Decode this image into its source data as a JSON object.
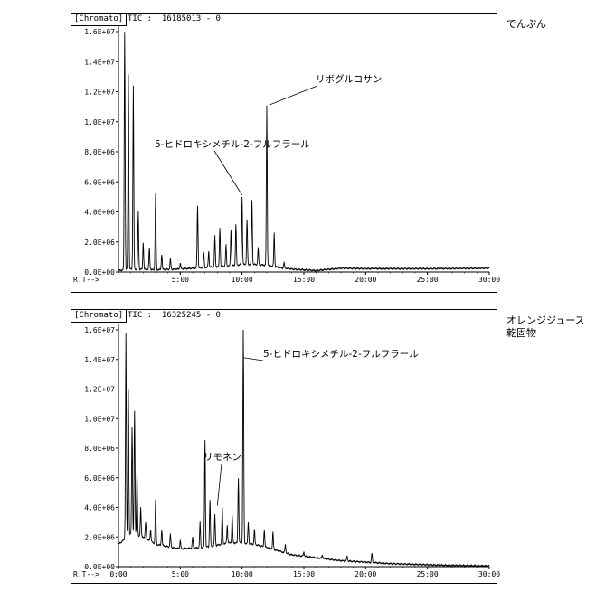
{
  "chart_data": [
    {
      "type": "line",
      "header": "[Chromato]",
      "tic": "TIC :  16185013 - 0",
      "sample_label": "でんぷん",
      "xlabel": "R.T-->",
      "xlim": [
        0,
        30
      ],
      "ylim": [
        0,
        16000000
      ],
      "x_ticks": [
        "5:00",
        "10:00",
        "15:00",
        "20:00",
        "25:00",
        "30:00"
      ],
      "y_ticks": [
        "0.0E+00",
        "2.0E+06",
        "4.0E+06",
        "6.0E+06",
        "8.0E+06",
        "1.0E+07",
        "1.2E+07",
        "1.4E+07",
        "1.6E+07"
      ],
      "baseline": [
        [
          0.0,
          0.1
        ],
        [
          1.0,
          0.2
        ],
        [
          3.0,
          0.15
        ],
        [
          5.0,
          0.2
        ],
        [
          7.0,
          0.3
        ],
        [
          9.0,
          0.4
        ],
        [
          10.0,
          0.5
        ],
        [
          11.0,
          0.5
        ],
        [
          12.0,
          0.45
        ],
        [
          13.0,
          0.3
        ],
        [
          14.0,
          0.2
        ],
        [
          16.0,
          0.1
        ],
        [
          18.0,
          0.25
        ],
        [
          20.0,
          0.22
        ],
        [
          25.0,
          0.22
        ],
        [
          30.0,
          0.25
        ]
      ],
      "peaks": [
        {
          "x": 0.5,
          "y": 16.0
        },
        {
          "x": 0.8,
          "y": 13.2
        },
        {
          "x": 1.2,
          "y": 12.4
        },
        {
          "x": 1.6,
          "y": 4.0
        },
        {
          "x": 2.0,
          "y": 2.0
        },
        {
          "x": 2.5,
          "y": 1.6
        },
        {
          "x": 3.0,
          "y": 5.2
        },
        {
          "x": 3.5,
          "y": 1.2
        },
        {
          "x": 4.2,
          "y": 0.9
        },
        {
          "x": 5.0,
          "y": 0.6
        },
        {
          "x": 6.4,
          "y": 4.4
        },
        {
          "x": 6.9,
          "y": 1.3
        },
        {
          "x": 7.3,
          "y": 1.4
        },
        {
          "x": 7.8,
          "y": 2.4
        },
        {
          "x": 8.2,
          "y": 3.0
        },
        {
          "x": 8.7,
          "y": 1.8
        },
        {
          "x": 9.1,
          "y": 2.8
        },
        {
          "x": 9.5,
          "y": 3.2
        },
        {
          "x": 10.0,
          "y": 5.0
        },
        {
          "x": 10.4,
          "y": 3.5
        },
        {
          "x": 10.8,
          "y": 4.8
        },
        {
          "x": 11.3,
          "y": 1.6
        },
        {
          "x": 12.0,
          "y": 11.1
        },
        {
          "x": 12.6,
          "y": 2.6
        },
        {
          "x": 13.4,
          "y": 0.6
        }
      ],
      "annotations": [
        {
          "text": "リボグルコサン",
          "x": 12.2,
          "y": 11.0
        },
        {
          "text": "5-ヒドロキシメチル-2-フルフラール",
          "x": 10.0,
          "y": 5.0
        }
      ]
    },
    {
      "type": "line",
      "header": "[Chromato]",
      "tic": "TIC :  16325245 - 0",
      "sample_label": "オレンジジュース\n乾固物",
      "xlabel": "R.T-->",
      "xlim": [
        0,
        30
      ],
      "ylim": [
        0,
        16000000
      ],
      "x_ticks": [
        "0:00",
        "5:00",
        "10:00",
        "15:00",
        "20:00",
        "25:00",
        "30:00"
      ],
      "y_ticks": [
        "0.0E+00",
        "2.0E+06",
        "4.0E+06",
        "6.0E+06",
        "8.0E+06",
        "1.0E+07",
        "1.2E+07",
        "1.4E+07",
        "1.6E+07"
      ],
      "baseline": [
        [
          0.0,
          1.5
        ],
        [
          1.0,
          2.2
        ],
        [
          2.0,
          2.0
        ],
        [
          3.0,
          1.5
        ],
        [
          5.0,
          1.2
        ],
        [
          7.0,
          1.3
        ],
        [
          9.0,
          1.6
        ],
        [
          10.0,
          1.6
        ],
        [
          11.0,
          1.5
        ],
        [
          12.0,
          1.3
        ],
        [
          14.0,
          0.8
        ],
        [
          16.0,
          0.6
        ],
        [
          18.0,
          0.4
        ],
        [
          20.0,
          0.3
        ],
        [
          22.0,
          0.2
        ],
        [
          26.0,
          0.1
        ],
        [
          30.0,
          0.05
        ]
      ],
      "peaks": [
        {
          "x": 0.6,
          "y": 15.8
        },
        {
          "x": 0.8,
          "y": 12.0
        },
        {
          "x": 1.1,
          "y": 9.5
        },
        {
          "x": 1.3,
          "y": 10.5
        },
        {
          "x": 1.5,
          "y": 6.5
        },
        {
          "x": 1.8,
          "y": 4.0
        },
        {
          "x": 2.2,
          "y": 3.0
        },
        {
          "x": 2.6,
          "y": 2.5
        },
        {
          "x": 3.0,
          "y": 4.5
        },
        {
          "x": 3.5,
          "y": 2.5
        },
        {
          "x": 4.2,
          "y": 2.2
        },
        {
          "x": 5.0,
          "y": 1.8
        },
        {
          "x": 6.0,
          "y": 2.0
        },
        {
          "x": 6.6,
          "y": 3.0
        },
        {
          "x": 7.0,
          "y": 8.6
        },
        {
          "x": 7.4,
          "y": 4.5
        },
        {
          "x": 7.8,
          "y": 3.5
        },
        {
          "x": 8.4,
          "y": 4.0
        },
        {
          "x": 8.8,
          "y": 2.8
        },
        {
          "x": 9.2,
          "y": 3.5
        },
        {
          "x": 9.7,
          "y": 6.0
        },
        {
          "x": 10.1,
          "y": 16.0
        },
        {
          "x": 10.5,
          "y": 3.0
        },
        {
          "x": 11.0,
          "y": 2.5
        },
        {
          "x": 11.8,
          "y": 2.5
        },
        {
          "x": 12.5,
          "y": 2.3
        },
        {
          "x": 13.5,
          "y": 1.5
        },
        {
          "x": 15.0,
          "y": 1.0
        },
        {
          "x": 16.5,
          "y": 0.8
        },
        {
          "x": 18.5,
          "y": 0.7
        },
        {
          "x": 20.5,
          "y": 0.9
        }
      ],
      "annotations": [
        {
          "text": "5-ヒドロキシメチル-2-フルフラール",
          "x": 10.1,
          "y": 14.0
        },
        {
          "text": "リモネン",
          "x": 8.0,
          "y": 4.0
        }
      ]
    }
  ]
}
